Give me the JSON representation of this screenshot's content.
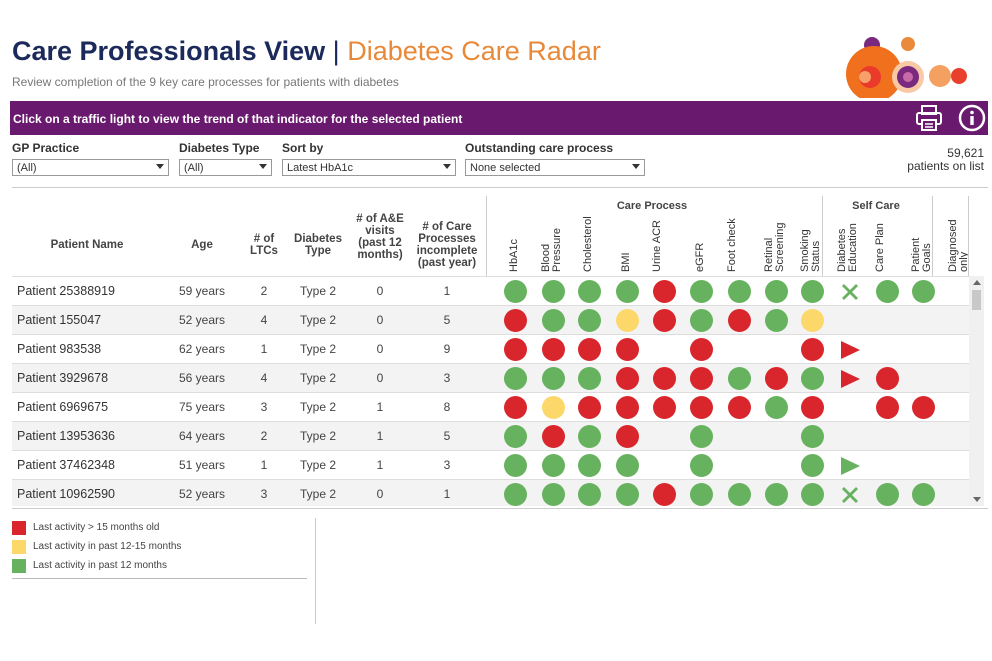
{
  "header": {
    "title": "Care Professionals View",
    "separator": "|",
    "subtitle": "Diabetes Care Radar",
    "description": "Review completion of the 9 key care processes for patients with diabetes"
  },
  "banner": {
    "text": "Click on a traffic light to view the trend of that indicator for the selected patient",
    "icons": [
      "print-icon",
      "info-icon"
    ]
  },
  "filters": {
    "gp_practice": {
      "label": "GP Practice",
      "value": "(All)"
    },
    "diabetes_type": {
      "label": "Diabetes Type",
      "value": "(All)"
    },
    "sort_by": {
      "label": "Sort by",
      "value": "Latest HbA1c"
    },
    "outstanding": {
      "label": "Outstanding care process",
      "value": "None selected"
    }
  },
  "patient_count": {
    "value": "59,621",
    "label": "patients on list"
  },
  "colors": {
    "red": "#d9262c",
    "amber": "#fcd86a",
    "green": "#66b25e",
    "banner": "#6a1a6e",
    "title": "#1b2a5a",
    "accent": "#e8893a"
  },
  "table": {
    "headers": {
      "name": "Patient Name",
      "age": "Age",
      "ltcs": "# of LTCs",
      "type": "Diabetes Type",
      "ae": "# of A&E visits (past 12 months)",
      "incomplete": "# of Care Processes incomplete (past year)"
    },
    "groups": {
      "care_process": "Care Process",
      "self_care": "Self Care"
    },
    "indicators": [
      "HbA1c",
      "Blood Pressure",
      "Cholesterol",
      "BMI",
      "Urine ACR",
      "eGFR",
      "Foot check",
      "Retinal Screening",
      "Smoking Status",
      "Diabetes Education",
      "Care Plan",
      "Patient Goals",
      "Diagnosed only"
    ],
    "rows": [
      {
        "name": "Patient 25388919",
        "age": "59 years",
        "ltcs": "2",
        "type": "Type 2",
        "ae": "0",
        "incomplete": "1",
        "status": [
          "G",
          "G",
          "G",
          "G",
          "R",
          "G",
          "G",
          "G",
          "G",
          "X",
          "G",
          "G",
          ""
        ]
      },
      {
        "name": "Patient 155047",
        "age": "52 years",
        "ltcs": "4",
        "type": "Type 2",
        "ae": "0",
        "incomplete": "5",
        "status": [
          "R",
          "G",
          "G",
          "A",
          "R",
          "G",
          "R",
          "G",
          "A",
          "",
          "",
          "",
          ""
        ]
      },
      {
        "name": "Patient 983538",
        "age": "62 years",
        "ltcs": "1",
        "type": "Type 2",
        "ae": "0",
        "incomplete": "9",
        "status": [
          "R",
          "R",
          "R",
          "R",
          "",
          "R",
          "",
          "",
          "R",
          "T",
          "",
          "",
          ""
        ]
      },
      {
        "name": "Patient 3929678",
        "age": "56 years",
        "ltcs": "4",
        "type": "Type 2",
        "ae": "0",
        "incomplete": "3",
        "status": [
          "G",
          "G",
          "G",
          "R",
          "R",
          "R",
          "G",
          "R",
          "G",
          "T",
          "R",
          "",
          ""
        ]
      },
      {
        "name": "Patient 6969675",
        "age": "75 years",
        "ltcs": "3",
        "type": "Type 2",
        "ae": "1",
        "incomplete": "8",
        "status": [
          "R",
          "A",
          "R",
          "R",
          "R",
          "R",
          "R",
          "G",
          "R",
          "",
          "R",
          "R",
          ""
        ]
      },
      {
        "name": "Patient 13953636",
        "age": "64 years",
        "ltcs": "2",
        "type": "Type 2",
        "ae": "1",
        "incomplete": "5",
        "status": [
          "G",
          "R",
          "G",
          "R",
          "",
          "G",
          "",
          "",
          "G",
          "",
          "",
          "",
          ""
        ]
      },
      {
        "name": "Patient 37462348",
        "age": "51 years",
        "ltcs": "1",
        "type": "Type 2",
        "ae": "1",
        "incomplete": "3",
        "status": [
          "G",
          "G",
          "G",
          "G",
          "",
          "G",
          "",
          "",
          "G",
          "TG",
          "",
          "",
          ""
        ]
      },
      {
        "name": "Patient 10962590",
        "age": "52 years",
        "ltcs": "3",
        "type": "Type 2",
        "ae": "0",
        "incomplete": "1",
        "status": [
          "G",
          "G",
          "G",
          "G",
          "R",
          "G",
          "G",
          "G",
          "G",
          "X",
          "G",
          "G",
          ""
        ]
      }
    ]
  },
  "legend": [
    {
      "color": "#d9262c",
      "label": "Last activity > 15 months old"
    },
    {
      "color": "#fcd86a",
      "label": "Last activity in past 12-15 months"
    },
    {
      "color": "#66b25e",
      "label": "Last activity in past 12 months"
    }
  ]
}
